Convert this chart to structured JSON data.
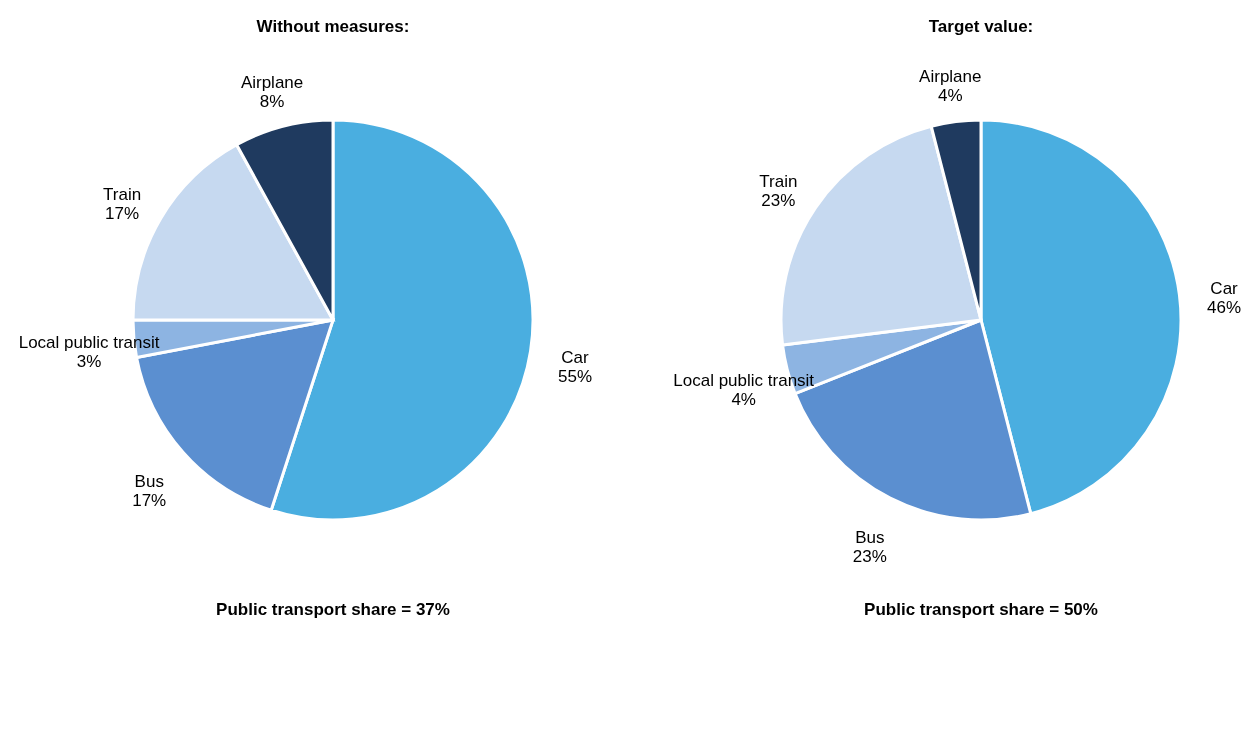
{
  "chart_data": [
    {
      "type": "pie",
      "title": "Without measures:",
      "categories": [
        "Car",
        "Bus",
        "Local public transit",
        "Train",
        "Airplane"
      ],
      "values": [
        55,
        17,
        3,
        17,
        8
      ],
      "value_labels": [
        "55%",
        "17%",
        "3%",
        "17%",
        "8%"
      ],
      "colors": [
        "#4aaee0",
        "#5b8fd0",
        "#8db4e2",
        "#c6d9f0",
        "#1f3a5f"
      ],
      "annotations": [
        "Public transport share = 37%"
      ]
    },
    {
      "type": "pie",
      "title": "Target value:",
      "categories": [
        "Car",
        "Bus",
        "Local public transit",
        "Train",
        "Airplane"
      ],
      "values": [
        46,
        23,
        4,
        23,
        4
      ],
      "value_labels": [
        "46%",
        "23%",
        "4%",
        "23%",
        "4%"
      ],
      "colors": [
        "#4aaee0",
        "#5b8fd0",
        "#8db4e2",
        "#c6d9f0",
        "#1f3a5f"
      ],
      "annotations": [
        "Public transport share = 50%"
      ]
    }
  ]
}
